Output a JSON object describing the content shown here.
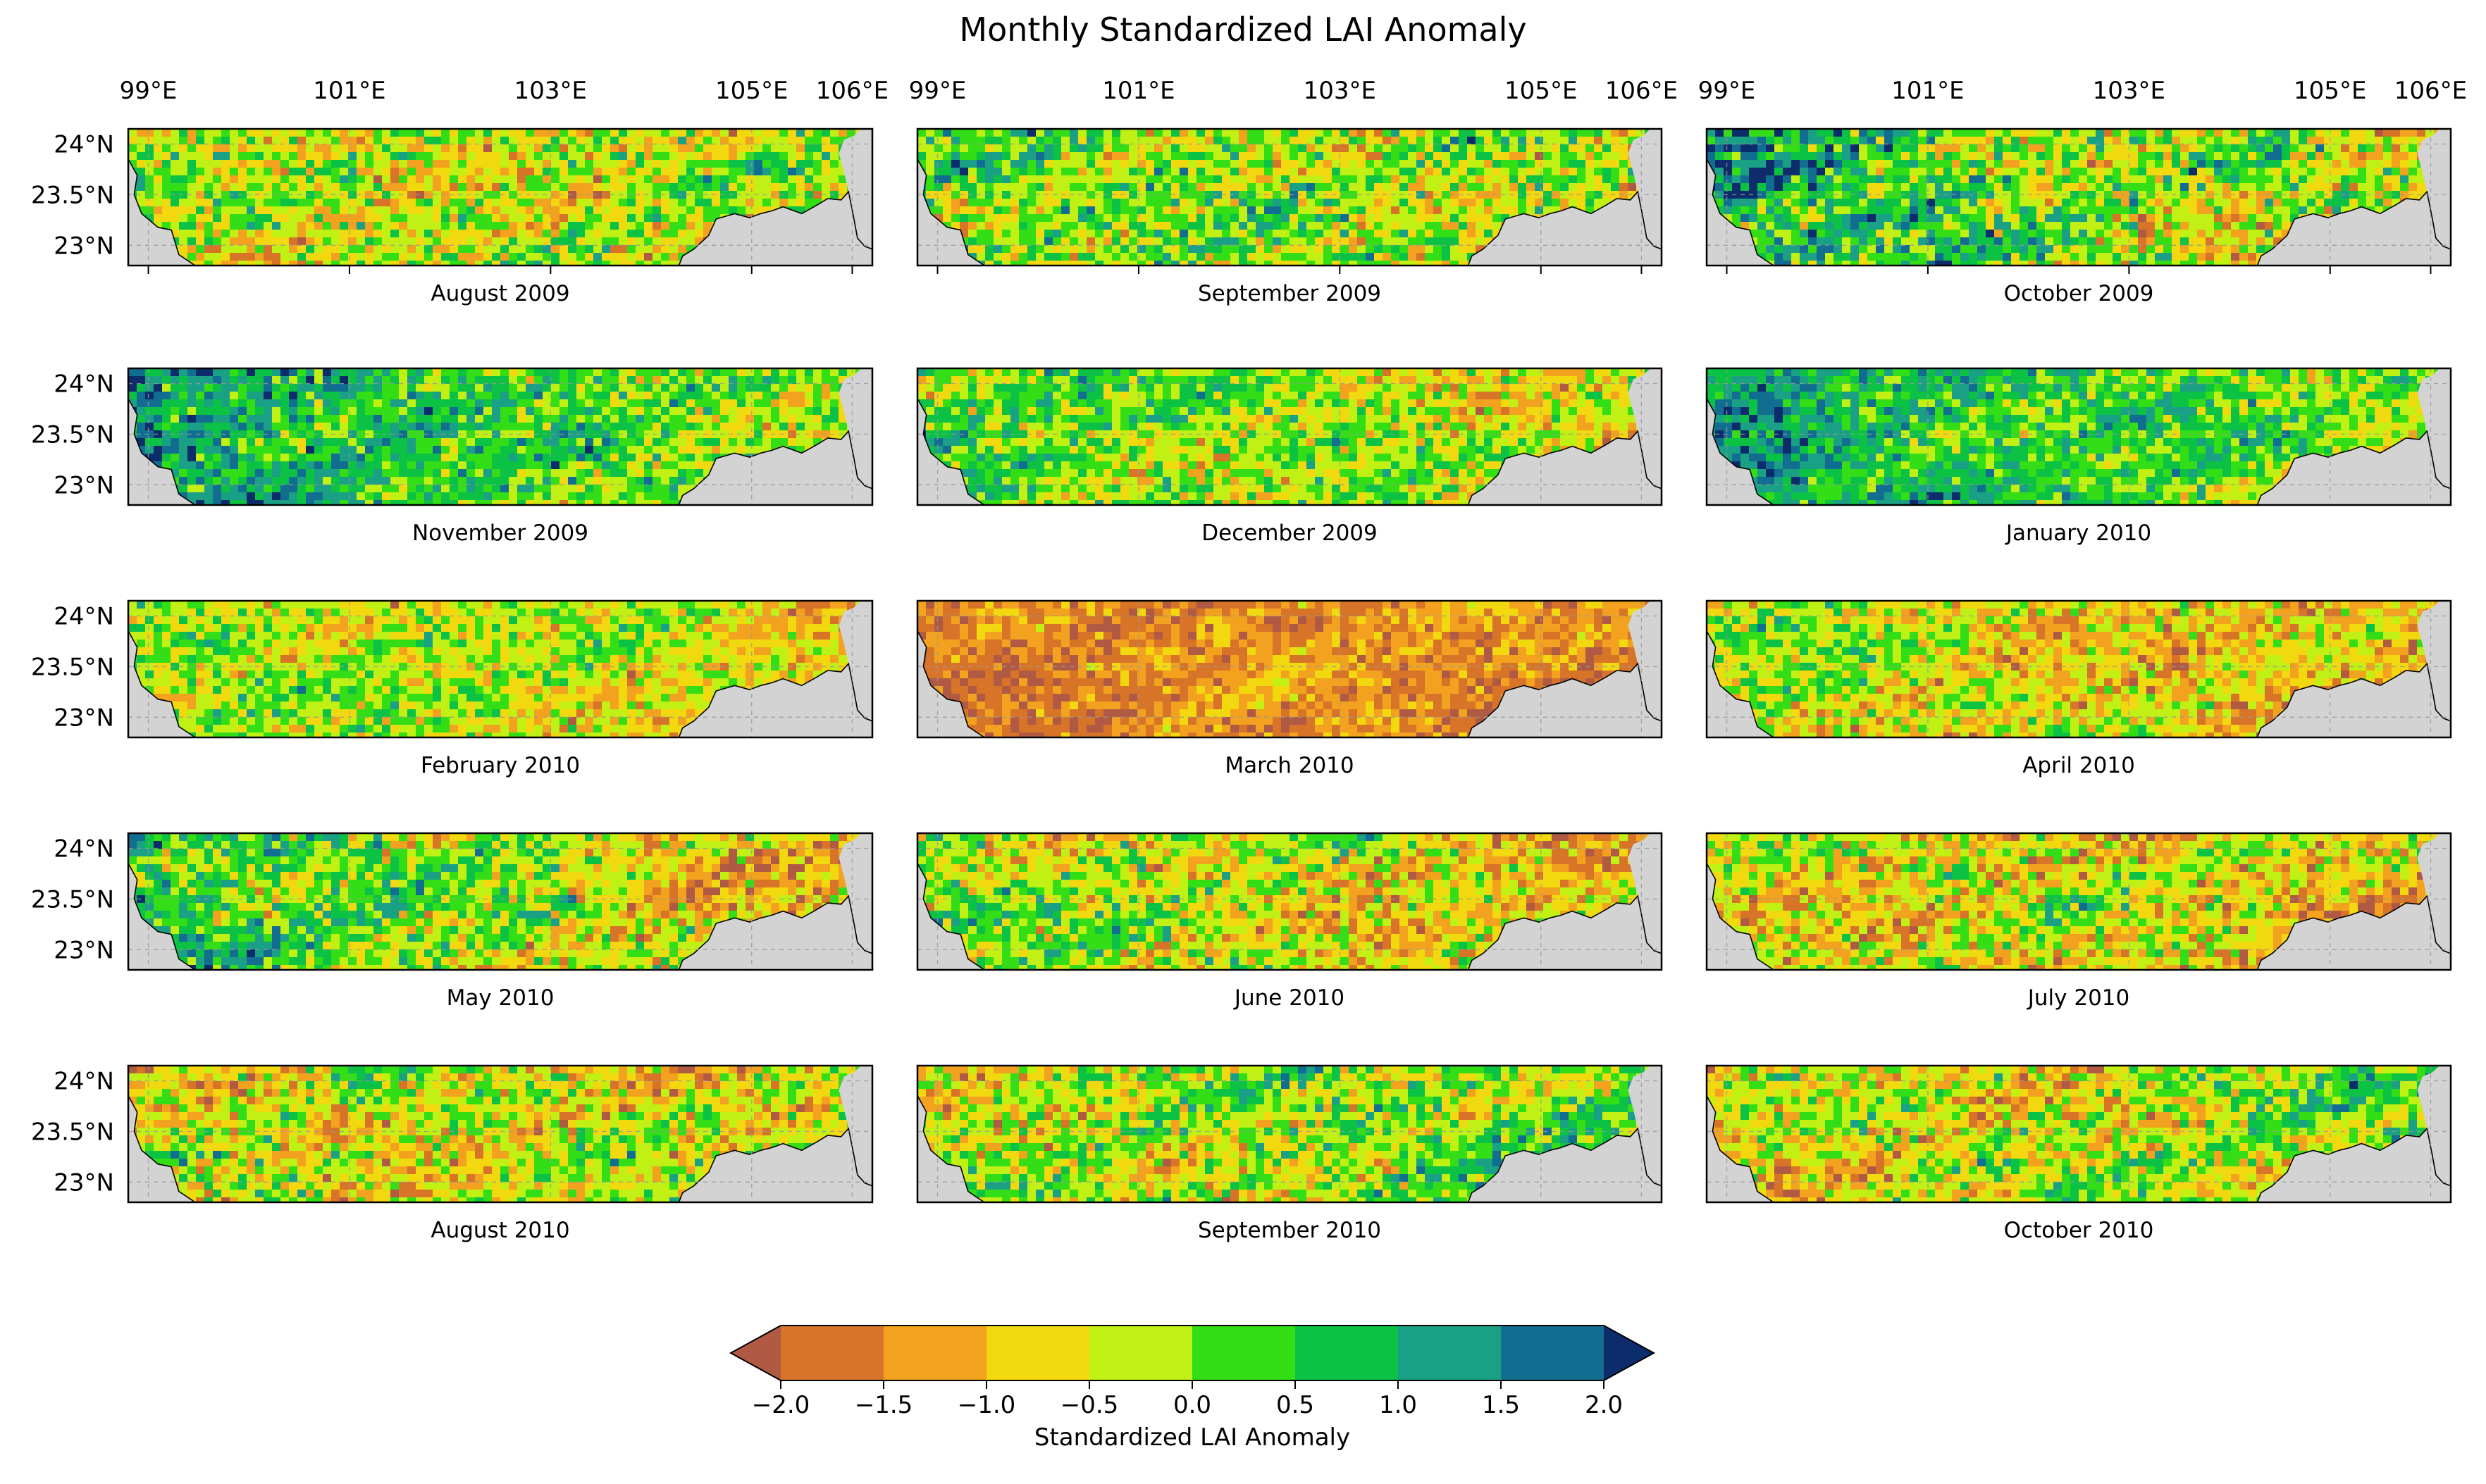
{
  "title": "Monthly Standardized LAI Anomaly",
  "colors": {
    "land_mask": "#d3d3d3",
    "border": "#000000",
    "grid": "#999999",
    "background": "#ffffff"
  },
  "chart_data": {
    "type": "heatmap",
    "title": "Monthly Standardized LAI Anomaly",
    "layout": "5 rows x 3 columns",
    "x_axis": {
      "range": [
        98.8,
        106.2
      ],
      "ticks": [
        99,
        101,
        103,
        105,
        106
      ],
      "tick_labels": [
        "99°E",
        "101°E",
        "103°E",
        "105°E",
        "106°E"
      ]
    },
    "y_axis": {
      "range": [
        22.8,
        24.15
      ],
      "ticks": [
        23,
        23.5,
        24
      ],
      "tick_labels": [
        "23°N",
        "23.5°N",
        "24°N"
      ]
    },
    "panels": [
      {
        "label": "August 2009",
        "mean_anomaly": -0.35,
        "spread": 1.0,
        "west_bias": 0.0,
        "east_bias": 0.0
      },
      {
        "label": "September 2009",
        "mean_anomaly": -0.1,
        "spread": 1.0,
        "west_bias": 0.3,
        "east_bias": -0.3
      },
      {
        "label": "October 2009",
        "mean_anomaly": -0.1,
        "spread": 1.1,
        "west_bias": 1.3,
        "east_bias": -0.6
      },
      {
        "label": "November 2009",
        "mean_anomaly": 0.35,
        "spread": 0.9,
        "west_bias": 1.1,
        "east_bias": -0.5
      },
      {
        "label": "December 2009",
        "mean_anomaly": -0.1,
        "spread": 0.9,
        "west_bias": 0.5,
        "east_bias": -0.7
      },
      {
        "label": "January 2010",
        "mean_anomaly": 0.45,
        "spread": 0.8,
        "west_bias": 0.8,
        "east_bias": -0.6
      },
      {
        "label": "February 2010",
        "mean_anomaly": -0.3,
        "spread": 0.8,
        "west_bias": 0.2,
        "east_bias": -0.4
      },
      {
        "label": "March 2010",
        "mean_anomaly": -1.4,
        "spread": 0.6,
        "west_bias": -0.3,
        "east_bias": 0.0
      },
      {
        "label": "April 2010",
        "mean_anomaly": -0.7,
        "spread": 0.9,
        "west_bias": 0.6,
        "east_bias": -0.4
      },
      {
        "label": "May 2010",
        "mean_anomaly": -0.2,
        "spread": 1.0,
        "west_bias": 1.0,
        "east_bias": -1.0
      },
      {
        "label": "June 2010",
        "mean_anomaly": -0.5,
        "spread": 1.0,
        "west_bias": 0.5,
        "east_bias": -0.6
      },
      {
        "label": "July 2010",
        "mean_anomaly": -0.6,
        "spread": 1.0,
        "west_bias": 0.0,
        "east_bias": -0.3
      },
      {
        "label": "August 2010",
        "mean_anomaly": -0.5,
        "spread": 1.0,
        "west_bias": 0.0,
        "east_bias": 0.0
      },
      {
        "label": "September 2010",
        "mean_anomaly": -0.2,
        "spread": 1.0,
        "west_bias": -0.2,
        "east_bias": 0.6
      },
      {
        "label": "October 2010",
        "mean_anomaly": -0.4,
        "spread": 1.0,
        "west_bias": -0.3,
        "east_bias": 0.5
      }
    ],
    "colorbar": {
      "label": "Standardized LAI Anomaly",
      "extend": "both",
      "bounds": [
        -2.5,
        -2.0,
        -1.5,
        -1.0,
        -0.5,
        0.0,
        0.5,
        1.0,
        1.5,
        2.0,
        2.5
      ],
      "tick_values": [
        -2.0,
        -1.5,
        -1.0,
        -0.5,
        0.0,
        0.5,
        1.0,
        1.5,
        2.0
      ],
      "tick_labels": [
        "−2.0",
        "−1.5",
        "−1.0",
        "−0.5",
        "0.0",
        "0.5",
        "1.0",
        "1.5",
        "2.0"
      ],
      "colors": [
        "#b05a44",
        "#d87428",
        "#f2a21e",
        "#f2d80e",
        "#c0f014",
        "#34de16",
        "#0cc244",
        "#1aa084",
        "#126e90",
        "#0c2c6c"
      ]
    }
  }
}
